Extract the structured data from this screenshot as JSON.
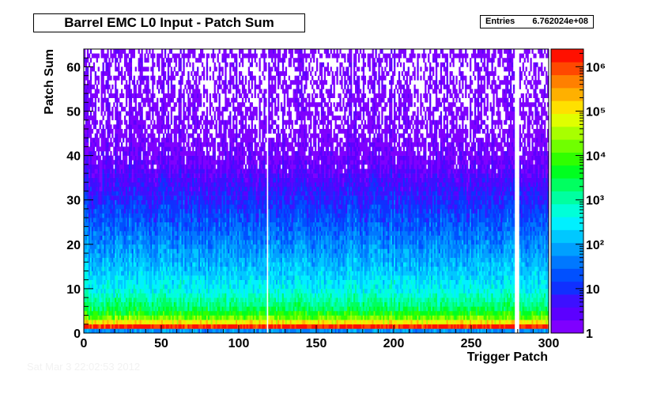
{
  "title": "Barrel EMC L0 Input - Patch Sum",
  "stats": {
    "label": "Entries",
    "value": "6.762024e+08"
  },
  "footer_text": "Sat Mar  3 22:02:53 2012",
  "chart_data": {
    "type": "heatmap",
    "title": "Barrel EMC L0 Input - Patch Sum",
    "xlabel": "Trigger Patch",
    "ylabel": "Patch Sum",
    "xlim": [
      0,
      300
    ],
    "ylim": [
      0,
      64
    ],
    "x_ticks": [
      0,
      50,
      100,
      150,
      200,
      250,
      300
    ],
    "y_ticks": [
      0,
      10,
      20,
      30,
      40,
      50,
      60
    ],
    "z_scale": "log",
    "zlim": [
      1,
      2500000
    ],
    "z_ticks": [
      {
        "value": 1,
        "label": "1"
      },
      {
        "value": 10,
        "label": "10"
      },
      {
        "value": 100,
        "label": "10²"
      },
      {
        "value": 1000,
        "label": "10³"
      },
      {
        "value": 10000,
        "label": "10⁴"
      },
      {
        "value": 100000,
        "label": "10⁵"
      },
      {
        "value": 1000000,
        "label": "10⁶"
      }
    ],
    "palette": [
      "#7f00ff",
      "#5c00ff",
      "#3d10ff",
      "#1030ff",
      "#0050ff",
      "#0078ff",
      "#00a0ff",
      "#00c8ff",
      "#00f0ff",
      "#00ffd8",
      "#00ffa0",
      "#00ff60",
      "#00ff20",
      "#30ff00",
      "#70ff00",
      "#a8ff00",
      "#e0ff00",
      "#ffe000",
      "#ffb000",
      "#ff8000",
      "#ff4800",
      "#ff1000"
    ],
    "bins": {
      "nx": 300,
      "ny": 64
    },
    "row_level_profile": [
      {
        "y": 0,
        "log10_counts": 1.8
      },
      {
        "y": 1,
        "log10_counts": 6.2
      },
      {
        "y": 2,
        "log10_counts": 5.0
      },
      {
        "y": 3,
        "log10_counts": 4.2
      },
      {
        "y": 5,
        "log10_counts": 3.4
      },
      {
        "y": 10,
        "log10_counts": 2.5
      },
      {
        "y": 20,
        "log10_counts": 1.7
      },
      {
        "y": 30,
        "log10_counts": 0.9
      },
      {
        "y": 38,
        "log10_counts": 0.3
      },
      {
        "y": 45,
        "log10_counts": 0.05
      },
      {
        "y": 63,
        "log10_counts": 0.0
      }
    ],
    "overflow_row_y": 62,
    "empty_columns": [
      118,
      278,
      279,
      280
    ]
  }
}
